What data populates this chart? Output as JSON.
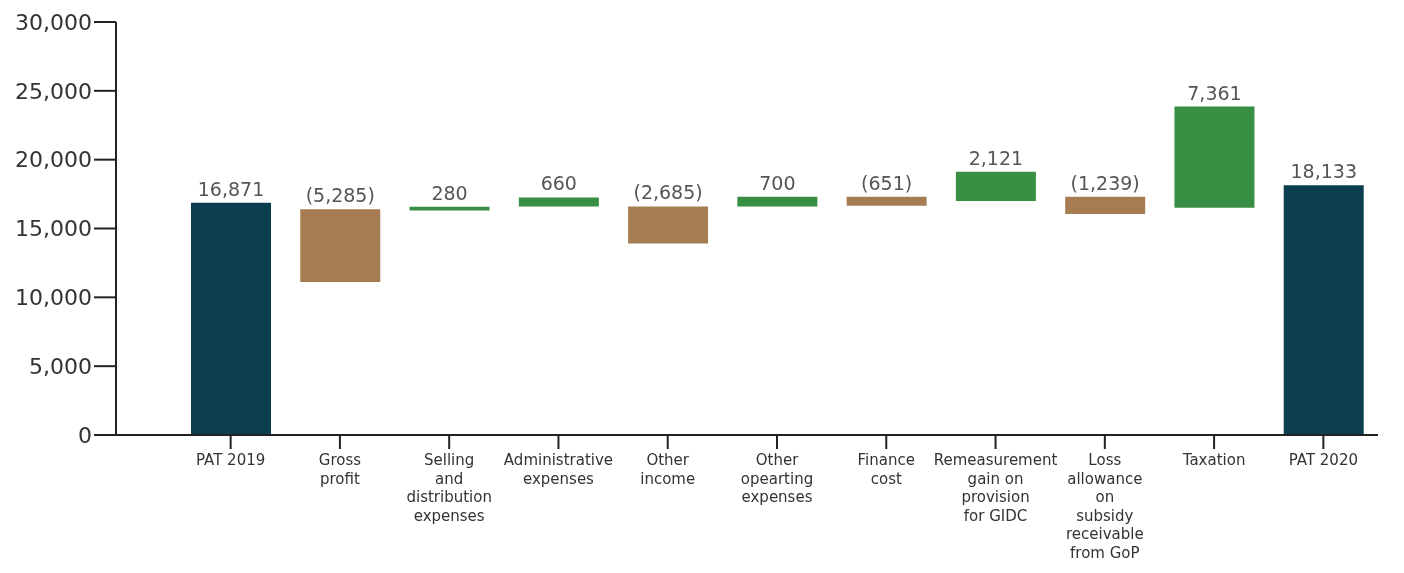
{
  "chart_data": {
    "type": "bar",
    "categories": [
      "PAT 2019",
      "Gross profit",
      "Selling and distribution expenses",
      "Administrative expenses",
      "Other income",
      "Other opearting expenses",
      "Finance cost",
      "Remeasurement gain on provision for GIDC",
      "Loss allowance on subsidy receivable from GoP",
      "Taxation",
      "PAT 2020"
    ],
    "values": [
      16871,
      -5285,
      280,
      660,
      -2685,
      700,
      -651,
      2121,
      -1239,
      7361,
      18133
    ],
    "base": [
      0,
      16400,
      16300,
      16600,
      16600,
      16600,
      17300,
      17000,
      17300,
      16500,
      0
    ],
    "colors": [
      "#0b3f4f",
      "#a67c52",
      "#388e43",
      "#388e43",
      "#a67c52",
      "#388e43",
      "#a67c52",
      "#388e43",
      "#a67c52",
      "#388e43",
      "#0b3f4f"
    ],
    "value_labels": [
      "16,871",
      "(5,285)",
      "280",
      "660",
      "(2,685)",
      "700",
      "(651)",
      "2,121",
      "(1,239)",
      "7,361",
      "18,133"
    ],
    "ylim": [
      0,
      30000
    ],
    "yticks": [
      {
        "value": 0,
        "label": "0"
      },
      {
        "value": 5000,
        "label": "5,000"
      },
      {
        "value": 10000,
        "label": "10,000"
      },
      {
        "value": 15000,
        "label": "15,000"
      },
      {
        "value": 20000,
        "label": "20,000"
      },
      {
        "value": 25000,
        "label": "25,000"
      },
      {
        "value": 30000,
        "label": "30,000"
      }
    ],
    "grid": false,
    "legend": false
  }
}
